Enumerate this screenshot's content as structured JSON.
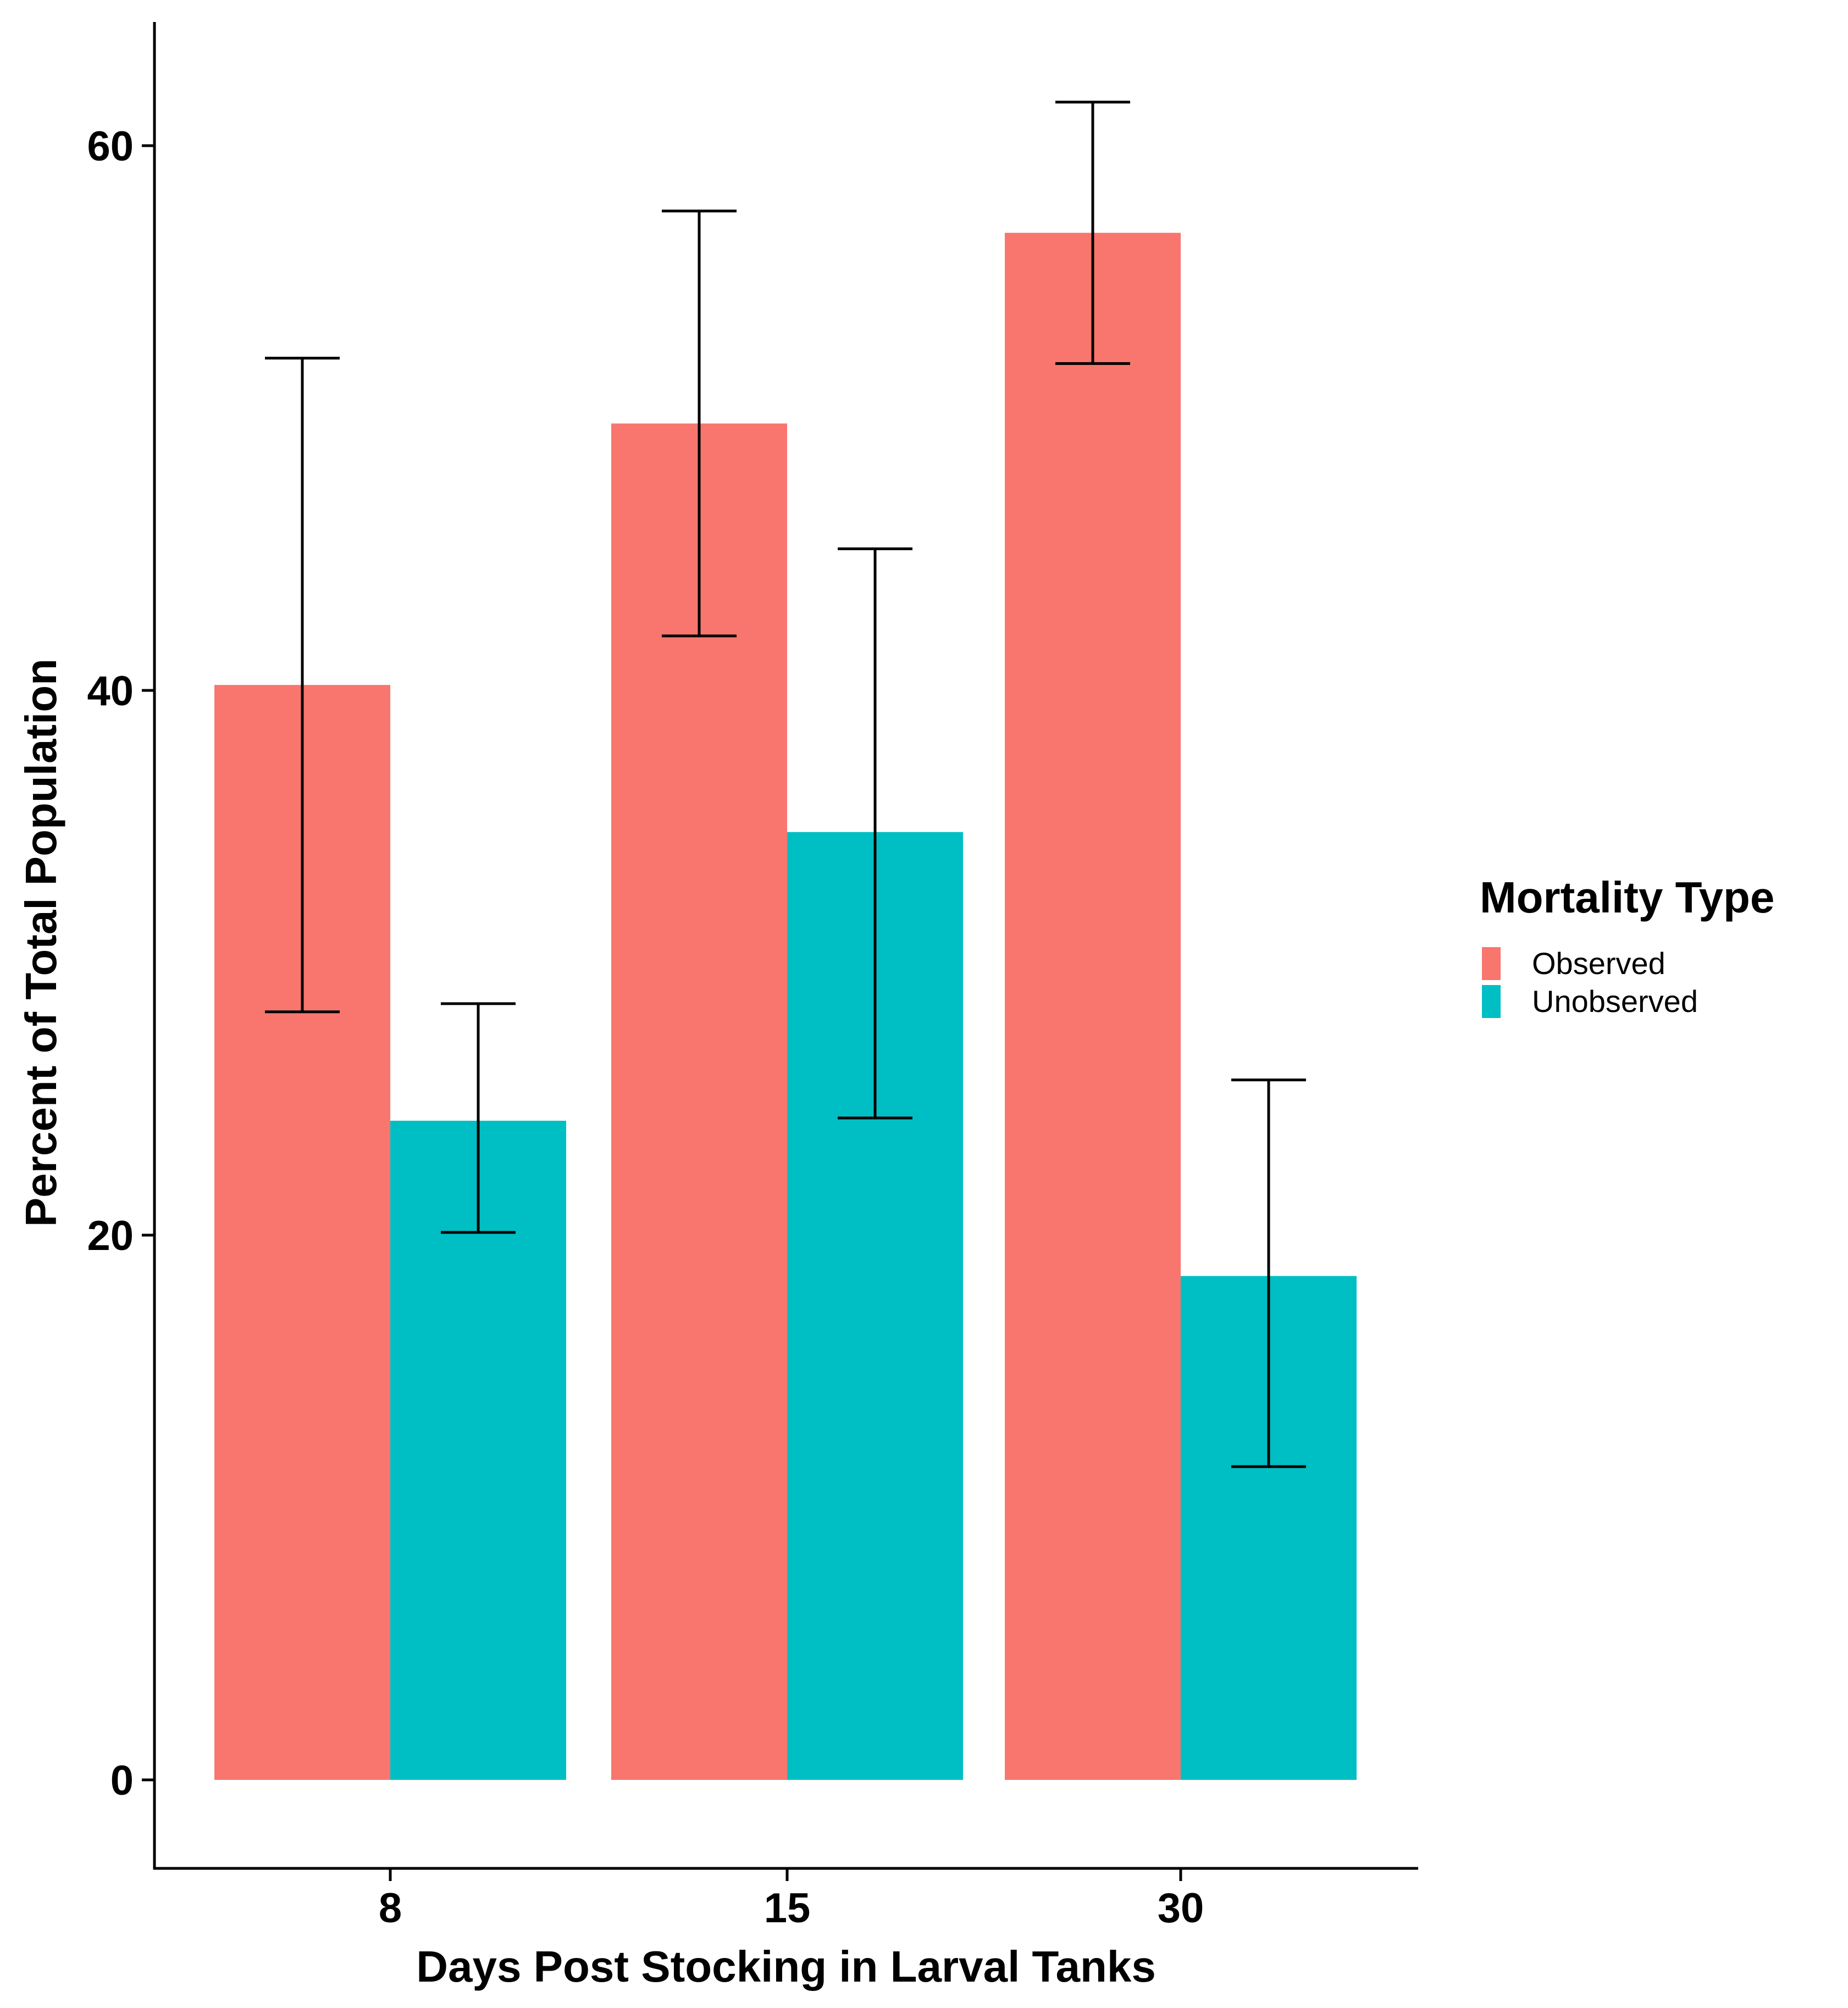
{
  "chart_data": {
    "type": "bar",
    "title": "",
    "xlabel": "Days Post Stocking in Larval Tanks",
    "ylabel": "Percent of Total Population",
    "categories": [
      "8",
      "15",
      "30"
    ],
    "series": [
      {
        "name": "Observed",
        "color": "#F8766D",
        "values": [
          40.2,
          49.8,
          56.8
        ],
        "error_low": [
          28.2,
          42.0,
          52.0
        ],
        "error_high": [
          52.2,
          57.6,
          61.6
        ]
      },
      {
        "name": "Unobserved",
        "color": "#00BFC4",
        "values": [
          24.2,
          34.8,
          18.5
        ],
        "error_low": [
          20.1,
          24.3,
          11.5
        ],
        "error_high": [
          28.5,
          45.2,
          25.7
        ]
      }
    ],
    "yticks": [
      "0",
      "20",
      "40",
      "60"
    ],
    "ylim": [
      -3,
      65
    ],
    "grid": false,
    "legend": {
      "title": "Mortality Type",
      "position": "right"
    }
  }
}
